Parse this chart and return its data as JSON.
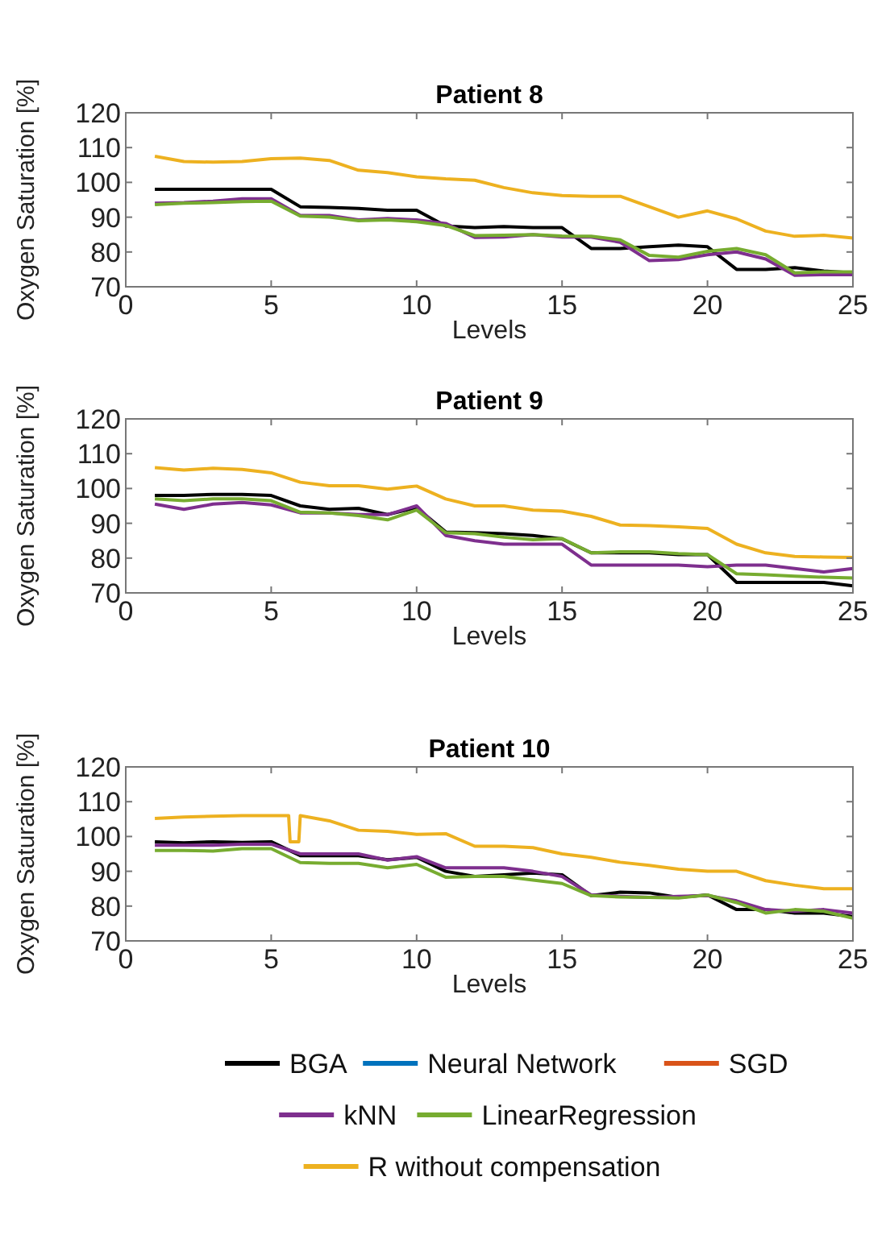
{
  "chart_data": [
    {
      "type": "line",
      "title": "Patient 8",
      "xlabel": "Levels",
      "ylabel": "Oxygen Saturation [%]",
      "xlim": [
        0,
        25
      ],
      "xticks": [
        0,
        5,
        10,
        15,
        20,
        25
      ],
      "ylim": [
        70,
        120
      ],
      "yticks": [
        70,
        80,
        90,
        100,
        110,
        120
      ],
      "grid": false,
      "legend": false,
      "x": [
        1,
        2,
        3,
        4,
        5,
        6,
        7,
        8,
        9,
        10,
        11,
        12,
        13,
        14,
        15,
        16,
        17,
        18,
        19,
        20,
        21,
        22,
        23,
        24,
        25
      ],
      "series": [
        {
          "color": "#000000",
          "values": [
            98,
            98,
            98,
            98,
            98,
            93,
            92.8,
            92.5,
            92,
            92,
            87.5,
            87,
            87.3,
            87,
            87,
            81,
            81,
            81.5,
            82,
            81.5,
            75,
            75,
            75.5,
            74.5,
            74
          ]
        },
        {
          "color": "#0072bd",
          "values": [
            null,
            null,
            null,
            null,
            null,
            null,
            null,
            null,
            null,
            null,
            null,
            null,
            null,
            null,
            null,
            null,
            null,
            null,
            null,
            null,
            null,
            null,
            null,
            null,
            null
          ]
        },
        {
          "color": "#d95319",
          "values": [
            null,
            null,
            null,
            null,
            null,
            null,
            null,
            null,
            null,
            null,
            null,
            null,
            null,
            null,
            null,
            null,
            null,
            null,
            null,
            null,
            null,
            null,
            null,
            null,
            null
          ]
        },
        {
          "color": "#7e2f8e",
          "values": [
            94,
            94.2,
            94.6,
            95.3,
            95.3,
            90.5,
            90.5,
            89.2,
            89.6,
            89.2,
            88.2,
            84.2,
            84.3,
            85,
            84.3,
            84.3,
            82.8,
            77.5,
            77.8,
            79.2,
            80,
            78,
            73.3,
            73.5,
            73.5
          ]
        },
        {
          "color": "#77ac30",
          "values": [
            93.6,
            94,
            94.2,
            94.5,
            94.6,
            90.3,
            90,
            89,
            89.2,
            88.7,
            87.6,
            84.7,
            84.8,
            85,
            84.6,
            84.5,
            83.5,
            79,
            78.5,
            80.2,
            81,
            79.2,
            74,
            74.3,
            74.3
          ]
        },
        {
          "color": "#edb120",
          "values": [
            107.5,
            106,
            105.8,
            106,
            106.8,
            107,
            106.3,
            103.5,
            102.8,
            101.6,
            101,
            100.6,
            98.5,
            97,
            96.2,
            96,
            96,
            93,
            90,
            91.8,
            89.5,
            86,
            84.5,
            84.8,
            84
          ]
        }
      ]
    },
    {
      "type": "line",
      "title": "Patient 9",
      "xlabel": "Levels",
      "ylabel": "Oxygen Saturation [%]",
      "xlim": [
        0,
        25
      ],
      "xticks": [
        0,
        5,
        10,
        15,
        20,
        25
      ],
      "ylim": [
        70,
        120
      ],
      "yticks": [
        70,
        80,
        90,
        100,
        110,
        120
      ],
      "grid": false,
      "legend": false,
      "x": [
        1,
        2,
        3,
        4,
        5,
        6,
        7,
        8,
        9,
        10,
        11,
        12,
        13,
        14,
        15,
        16,
        17,
        18,
        19,
        20,
        21,
        22,
        23,
        24,
        25
      ],
      "series": [
        {
          "color": "#000000",
          "values": [
            98,
            98,
            98.3,
            98.3,
            98,
            95,
            94,
            94.3,
            92.5,
            94.5,
            87.5,
            87.3,
            87,
            86.5,
            85.5,
            81.5,
            81.5,
            81.5,
            81,
            81,
            73,
            73,
            73,
            73,
            72
          ]
        },
        {
          "color": "#0072bd",
          "values": [
            null,
            null,
            null,
            null,
            null,
            null,
            null,
            null,
            null,
            null,
            null,
            null,
            null,
            null,
            null,
            null,
            null,
            null,
            null,
            null,
            null,
            null,
            null,
            null,
            null
          ]
        },
        {
          "color": "#d95319",
          "values": [
            null,
            null,
            null,
            null,
            null,
            null,
            null,
            null,
            null,
            null,
            null,
            null,
            null,
            null,
            null,
            null,
            null,
            null,
            null,
            null,
            null,
            null,
            null,
            null,
            null
          ]
        },
        {
          "color": "#7e2f8e",
          "values": [
            95.5,
            94,
            95.5,
            96,
            95.3,
            93,
            93,
            92.5,
            92.5,
            95,
            86.5,
            85,
            84,
            84,
            84,
            78,
            78,
            78,
            78,
            77.5,
            78,
            78,
            77,
            76,
            77
          ]
        },
        {
          "color": "#77ac30",
          "values": [
            97,
            96.5,
            97,
            97,
            96.5,
            93.2,
            93,
            92.2,
            91,
            93.8,
            87.3,
            87,
            86,
            85.3,
            85.6,
            81.5,
            81.8,
            81.8,
            81.3,
            81,
            75.5,
            75.2,
            74.8,
            74.5,
            74.3
          ]
        },
        {
          "color": "#edb120",
          "values": [
            106,
            105.3,
            105.8,
            105.5,
            104.5,
            101.8,
            100.8,
            100.8,
            99.8,
            100.7,
            97,
            95,
            95,
            93.8,
            93.5,
            92,
            89.5,
            89.3,
            89,
            88.5,
            84,
            81.5,
            80.5,
            80.3,
            80.2
          ]
        }
      ]
    },
    {
      "type": "line",
      "title": "Patient 10",
      "xlabel": "Levels",
      "ylabel": "Oxygen Saturation [%]",
      "xlim": [
        0,
        25
      ],
      "xticks": [
        0,
        5,
        10,
        15,
        20,
        25
      ],
      "ylim": [
        70,
        120
      ],
      "yticks": [
        70,
        80,
        90,
        100,
        110,
        120
      ],
      "grid": false,
      "legend": "bottom",
      "x": [
        1,
        2,
        3,
        4,
        5,
        6,
        7,
        8,
        9,
        10,
        11,
        12,
        13,
        14,
        15,
        16,
        17,
        18,
        19,
        20,
        21,
        22,
        23,
        24,
        25
      ],
      "series": [
        {
          "name": "BGA",
          "color": "#000000",
          "values": [
            98.5,
            98.2,
            98.5,
            98.3,
            98.5,
            94.5,
            94.5,
            94.5,
            93.3,
            94,
            90,
            88.5,
            89,
            89.5,
            89,
            83,
            84,
            83.8,
            82.5,
            83.2,
            79,
            79,
            78,
            78,
            77
          ]
        },
        {
          "name": "Neural Network",
          "color": "#0072bd",
          "values": [
            null,
            null,
            null,
            null,
            null,
            null,
            null,
            null,
            null,
            null,
            null,
            null,
            null,
            null,
            null,
            null,
            null,
            null,
            null,
            null,
            null,
            null,
            null,
            null,
            null
          ]
        },
        {
          "name": "SGD",
          "color": "#d95319",
          "values": [
            null,
            null,
            null,
            null,
            null,
            null,
            null,
            null,
            null,
            null,
            null,
            null,
            null,
            null,
            null,
            null,
            null,
            null,
            null,
            null,
            null,
            null,
            null,
            null,
            null
          ]
        },
        {
          "name": "kNN",
          "color": "#7e2f8e",
          "values": [
            97.5,
            97.5,
            97.5,
            97.8,
            97.8,
            95,
            95,
            95,
            93.2,
            94.2,
            91,
            91,
            91,
            90,
            88.5,
            83.2,
            82.8,
            82.5,
            82.8,
            83,
            81.5,
            79,
            78.5,
            79,
            78
          ]
        },
        {
          "name": "LinearRegression",
          "color": "#77ac30",
          "values": [
            96,
            96,
            95.8,
            96.5,
            96.5,
            92.5,
            92.3,
            92.3,
            91,
            92,
            88.3,
            88.5,
            88.5,
            87.5,
            86.5,
            83,
            82.6,
            82.5,
            82.3,
            83.2,
            81,
            78,
            79,
            78.5,
            76.5
          ]
        },
        {
          "name": "R without compensation",
          "color": "#edb120",
          "x": [
            1,
            2,
            3,
            4,
            5,
            5.6,
            5.65,
            5.95,
            6,
            7,
            8,
            9,
            10,
            11,
            12,
            13,
            14,
            15,
            16,
            17,
            18,
            19,
            20,
            21,
            22,
            23,
            24,
            25
          ],
          "values": [
            105.2,
            105.6,
            105.8,
            106,
            106,
            106,
            98.5,
            98.5,
            106,
            104.5,
            101.8,
            101.5,
            100.6,
            100.8,
            97.2,
            97.2,
            96.8,
            95,
            94,
            92.6,
            91.7,
            90.6,
            90,
            90,
            87.3,
            86,
            85,
            85
          ]
        }
      ]
    }
  ]
}
